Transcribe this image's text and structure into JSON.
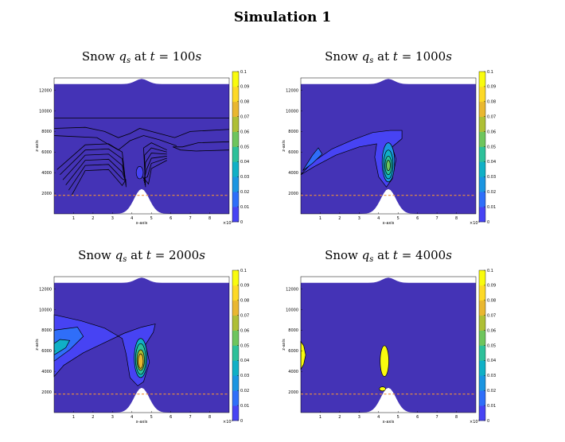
{
  "figure": {
    "title": "Simulation 1"
  },
  "chart_data": [
    {
      "type": "heatmap",
      "title_prefix": "Snow",
      "title_var": "q",
      "title_sub": "s",
      "title_at": "at",
      "title_t": "t",
      "title_eq": "= 100",
      "title_unit": "s",
      "xlabel": "x-axis",
      "ylabel": "z-axis",
      "x_exponent": "×10",
      "x_exponent_power": "4",
      "xticks": [
        "1",
        "2",
        "3",
        "4",
        "5",
        "6",
        "7",
        "8"
      ],
      "yticks": [
        "2000",
        "4000",
        "6000",
        "8000",
        "10000",
        "12000"
      ],
      "xlim": [
        0,
        9
      ],
      "ylim": [
        0,
        13200
      ],
      "colorbar_ticks": [
        "0",
        "0.01",
        "0.02",
        "0.03",
        "0.04",
        "0.05",
        "0.06",
        "0.07",
        "0.08",
        "0.09",
        "0.1"
      ],
      "background_color": "#4433b6",
      "dashed_line_z": 1800,
      "mountain": {
        "center_x": 4.5,
        "peak_z": 2400
      },
      "regions": "contour lines only"
    },
    {
      "type": "heatmap",
      "title_prefix": "Snow",
      "title_var": "q",
      "title_sub": "s",
      "title_at": "at",
      "title_t": "t",
      "title_eq": "= 1000",
      "title_unit": "s",
      "xlabel": "x-axis",
      "ylabel": "z-axis",
      "x_exponent": "×10",
      "x_exponent_power": "4",
      "xticks": [
        "1",
        "2",
        "3",
        "4",
        "5",
        "6",
        "7",
        "8"
      ],
      "yticks": [
        "2000",
        "4000",
        "6000",
        "8000",
        "10000",
        "12000"
      ],
      "xlim": [
        0,
        9
      ],
      "ylim": [
        0,
        13200
      ],
      "colorbar_ticks": [
        "0",
        "0.01",
        "0.02",
        "0.03",
        "0.04",
        "0.05",
        "0.06",
        "0.07",
        "0.08",
        "0.09",
        "0.1"
      ],
      "background_color": "#4433b6",
      "dashed_line_z": 1800,
      "mountain": {
        "center_x": 4.5,
        "peak_z": 2400
      },
      "regions": "upwind plume and column near x=4.6"
    },
    {
      "type": "heatmap",
      "title_prefix": "Snow",
      "title_var": "q",
      "title_sub": "s",
      "title_at": "at",
      "title_t": "t",
      "title_eq": "= 2000",
      "title_unit": "s",
      "xlabel": "x-axis",
      "ylabel": "z-axis",
      "x_exponent": "×10",
      "x_exponent_power": "4",
      "xticks": [
        "1",
        "2",
        "3",
        "4",
        "5",
        "6",
        "7",
        "8"
      ],
      "yticks": [
        "2000",
        "4000",
        "6000",
        "8000",
        "10000",
        "12000"
      ],
      "xlim": [
        0,
        9
      ],
      "ylim": [
        0,
        13200
      ],
      "colorbar_ticks": [
        "0",
        "0.01",
        "0.02",
        "0.03",
        "0.04",
        "0.05",
        "0.06",
        "0.07",
        "0.08",
        "0.09",
        "0.1"
      ],
      "background_color": "#4433b6",
      "dashed_line_z": 1800,
      "mountain": {
        "center_x": 4.5,
        "peak_z": 2400
      },
      "regions": "larger upwind plume and column with core ~0.08"
    },
    {
      "type": "heatmap",
      "title_prefix": "Snow",
      "title_var": "q",
      "title_sub": "s",
      "title_at": "at",
      "title_t": "t",
      "title_eq": "= 4000",
      "title_unit": "s",
      "xlabel": "x-axis",
      "ylabel": "z-axis",
      "x_exponent": "×10",
      "x_exponent_power": "4",
      "xticks": [
        "1",
        "2",
        "3",
        "4",
        "5",
        "6",
        "7",
        "8"
      ],
      "yticks": [
        "2000",
        "4000",
        "6000",
        "8000",
        "10000",
        "12000"
      ],
      "xlim": [
        0,
        9
      ],
      "ylim": [
        0,
        13200
      ],
      "colorbar_ticks": [
        "0",
        "0.01",
        "0.02",
        "0.03",
        "0.04",
        "0.05",
        "0.06",
        "0.07",
        "0.08",
        "0.09",
        "0.1"
      ],
      "background_color": "#4433b6",
      "dashed_line_z": 1800,
      "mountain": {
        "center_x": 4.5,
        "peak_z": 2400
      },
      "regions": "two yellow blobs (>=0.1)"
    }
  ]
}
